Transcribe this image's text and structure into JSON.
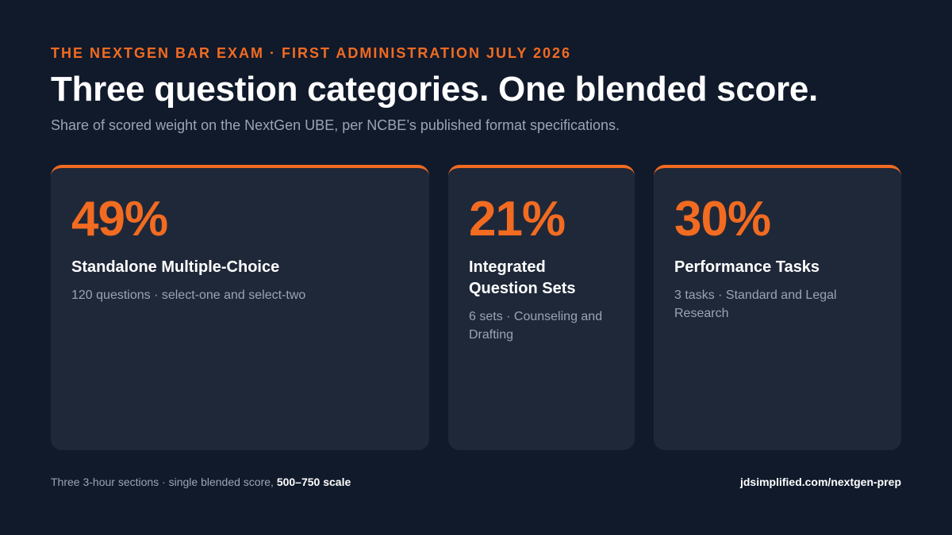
{
  "header": {
    "eyebrow": "THE NEXTGEN BAR EXAM · FIRST ADMINISTRATION JULY 2026",
    "title": "Three question categories. One blended score.",
    "subtitle": "Share of scored weight on the NextGen UBE, per NCBE’s published format specifications."
  },
  "cards": [
    {
      "percent": "49%",
      "title": "Standalone Multiple-Choice",
      "detail": "120 questions · select-one and select-two"
    },
    {
      "percent": "21%",
      "title": "Integrated Question Sets",
      "detail": "6 sets · Counseling and Drafting"
    },
    {
      "percent": "30%",
      "title": "Performance Tasks",
      "detail": "3 tasks · Standard and Legal Research"
    }
  ],
  "footer": {
    "note": "Three 3-hour sections · single blended score, ",
    "note_bold": "500–750 scale",
    "link": "jdsimplified.com/nextgen-prep"
  }
}
